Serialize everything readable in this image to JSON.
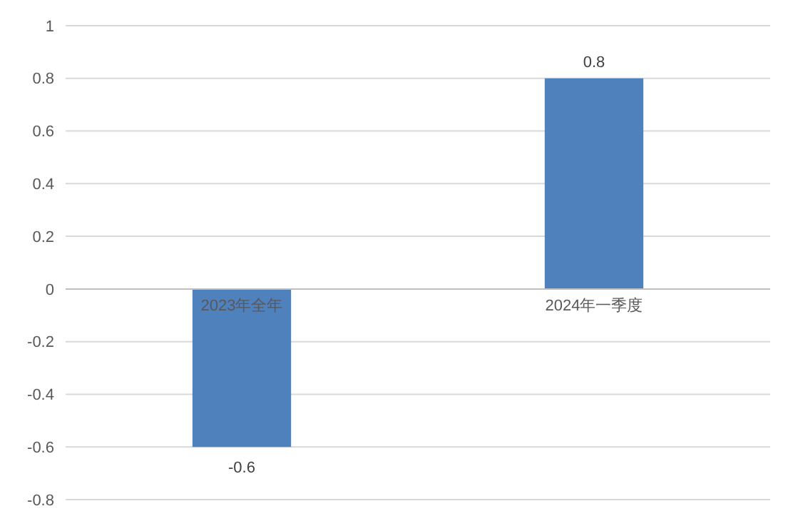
{
  "chart_data": {
    "type": "bar",
    "categories": [
      "2023年全年",
      "2024年一季度"
    ],
    "values": [
      -0.6,
      0.8
    ],
    "color": "#4f81bd",
    "ylim": [
      -0.8,
      1
    ],
    "yticks": [
      -0.8,
      -0.6,
      -0.4,
      -0.2,
      0,
      0.2,
      0.4,
      0.6,
      0.8,
      1
    ],
    "grid": "y",
    "data_labels": true
  }
}
